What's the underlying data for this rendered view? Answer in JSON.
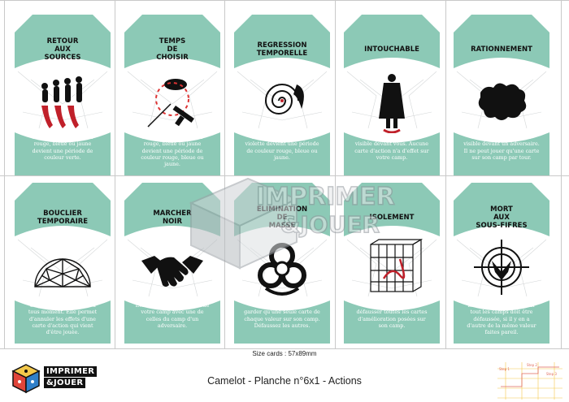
{
  "cards": [
    {
      "title": "RETOUR\nAUX\nSOURCES",
      "icon": "evolution-icon",
      "text": "Une période de couleur rouge, bleue ou jaune devient une période de couleur verte."
    },
    {
      "title": "TEMPS\nDE\nCHOISIR",
      "icon": "weapons-choice-icon",
      "text": "Une période de couleur rouge, bleue ou jaune devient une période de couleur rouge, bleue ou jaune."
    },
    {
      "title": "REGRESSION\nTEMPORELLE",
      "icon": "time-spiral-icon",
      "text": "Une période de couleur violette devient une période de couleur rouge, bleue ou jaune."
    },
    {
      "title": "INTOUCHABLE",
      "icon": "cloaked-figure-icon",
      "text": "Placez cette carte face visible devant vous. Aucune carte d'action n'a d'effet sur votre camp."
    },
    {
      "title": "RATIONNEMENT",
      "icon": "hide-rug-icon",
      "text": "Placez cette carte face visible devant un adversaire. Il ne peut jouer qu'une carte sur son camp par tour."
    },
    {
      "title": "BOUCLIER\nTEMPORAIRE",
      "icon": "geodesic-dome-icon",
      "text": "Un joueur peut la jouer à tous moment. Elle permet d'annuler les effets d'une carte d'action qui vient d'être jouée."
    },
    {
      "title": "MARCHER\nNOIR",
      "icon": "handshake-icon",
      "text": "Echangez une des cartes de votre camp avec une de celles du camp d'un adversaire."
    },
    {
      "title": "ELIMINATION\nDE\nMASSE",
      "icon": "biohazard-icon",
      "text": "Chaque joueur ne doit garder qu'une seule carte de chaque valeur sur son camp. Défaussez les autres."
    },
    {
      "title": "ISOLEMENT",
      "icon": "caged-dna-icon",
      "text": "Chaque joueur doit défausser toutes les cartes d'amélioration posées sur son camp."
    },
    {
      "title": "MORT\nAUX\nSOUS-FIFRES",
      "icon": "target-crosshair-icon",
      "text": "La carte la plus basse sur tout les camps doit être défaussée, si il y en a d'autre de la même valeur faites pareil."
    }
  ],
  "watermark": {
    "line1": "IMPRIMER",
    "line2": "&JOUER"
  },
  "size_label": "Size cards : 57x89mm",
  "footer_title": "Camelot - Planche n°6x1 - Actions",
  "logo": {
    "line1": "IMPRIMER",
    "line2": "&JOUER"
  },
  "steps": [
    "Step 1",
    "Step 2",
    "Step 3"
  ],
  "colors": {
    "card_teal": "#8cc9b6",
    "card_bg": "#ffffff",
    "ink": "#111111",
    "step_red": "#e06a5b",
    "step_yellow": "#f3c84a"
  }
}
